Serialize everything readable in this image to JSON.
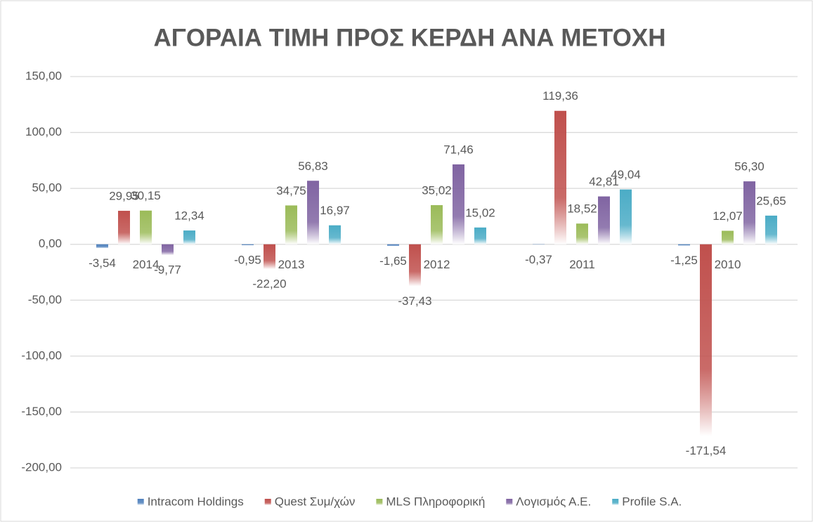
{
  "chart_data": {
    "type": "bar",
    "title": "ΑΓΟΡΑΙΑ ΤΙΜΗ ΠΡΟΣ ΚΕΡΔΗ ΑΝΑ ΜΕΤΟΧΗ",
    "categories": [
      "2014",
      "2013",
      "2012",
      "2011",
      "2010"
    ],
    "series": [
      {
        "name": "Intracom Holdings",
        "color": "#4f81bd",
        "values": [
          -3.54,
          -0.95,
          -1.65,
          -0.37,
          -1.25
        ],
        "value_labels": [
          "-3,54",
          "-0,95",
          "-1,65",
          "-0,37",
          "-1,25"
        ]
      },
      {
        "name": "Quest Συμ/χών",
        "color": "#c0504d",
        "values": [
          29.95,
          -22.2,
          -37.43,
          119.36,
          -171.54
        ],
        "value_labels": [
          "29,95",
          "-22,20",
          "-37,43",
          "119,36",
          "-171,54"
        ]
      },
      {
        "name": "MLS Πληροφορική",
        "color": "#9bbb59",
        "values": [
          30.15,
          34.75,
          35.02,
          18.52,
          12.07
        ],
        "value_labels": [
          "30,15",
          "34,75",
          "35,02",
          "18,52",
          "12,07"
        ]
      },
      {
        "name": "Λογισμός Α.Ε.",
        "color": "#8064a2",
        "values": [
          -9.77,
          56.83,
          71.46,
          42.81,
          56.3
        ],
        "value_labels": [
          "-9,77",
          "56,83",
          "71,46",
          "42,81",
          "56,30"
        ]
      },
      {
        "name": "Profile S.A.",
        "color": "#4bacc6",
        "values": [
          12.34,
          16.97,
          15.02,
          49.04,
          25.65
        ],
        "value_labels": [
          "12,34",
          "16,97",
          "15,02",
          "49,04",
          "25,65"
        ]
      }
    ],
    "ylim": [
      -200,
      150
    ],
    "yticks": [
      {
        "value": -200,
        "label": "-200,00"
      },
      {
        "value": -150,
        "label": "-150,00"
      },
      {
        "value": -100,
        "label": "-100,00"
      },
      {
        "value": -50,
        "label": "-50,00"
      },
      {
        "value": 0,
        "label": "0,00"
      },
      {
        "value": 50,
        "label": "50,00"
      },
      {
        "value": 100,
        "label": "100,00"
      },
      {
        "value": 150,
        "label": "150,00"
      }
    ],
    "grid": true,
    "legend": "bottom"
  }
}
